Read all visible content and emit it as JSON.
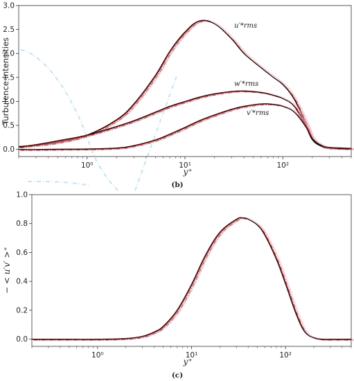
{
  "colors": {
    "dns": "#111111",
    "model_solid": "#8b1a1a",
    "model_dashdot": "#d23030",
    "faint_pink": "#f2b8c6",
    "faint_blue": "#a8d8f0"
  },
  "chart_data": [
    {
      "type": "line",
      "panel": "(b)",
      "xscale": "log",
      "xlim": [
        0.2,
        500
      ],
      "ylim": [
        -0.15,
        3.0
      ],
      "xlabel": "y⁺",
      "ylabel": "Turbulence Intensities",
      "xticks": [
        "10⁰",
        "10¹",
        "10²"
      ],
      "yticks": [
        "0.0",
        "0.5",
        "1.0",
        "1.5",
        "2.0",
        "2.5",
        "3.0"
      ],
      "legend": "none",
      "annotations": [
        {
          "text": "u′*rms",
          "series": "u_rms"
        },
        {
          "text": "w′*rms",
          "series": "w_rms"
        },
        {
          "text": "v′*rms",
          "series": "v_rms"
        }
      ],
      "x": [
        0.2,
        0.3,
        0.5,
        1,
        2,
        3,
        5,
        7,
        10,
        14,
        20,
        30,
        40,
        60,
        80,
        100,
        130,
        170,
        200,
        250,
        300,
        400,
        500
      ],
      "series": [
        {
          "key": "u_rms",
          "values": [
            0.06,
            0.09,
            0.15,
            0.3,
            0.62,
            0.95,
            1.55,
            2.05,
            2.45,
            2.68,
            2.62,
            2.3,
            2.0,
            1.7,
            1.5,
            1.35,
            1.05,
            0.55,
            0.2,
            0.06,
            0.03,
            0.02,
            0.02
          ]
        },
        {
          "key": "w_rms",
          "values": [
            0.05,
            0.1,
            0.18,
            0.3,
            0.48,
            0.6,
            0.78,
            0.9,
            1.0,
            1.09,
            1.16,
            1.21,
            1.22,
            1.19,
            1.13,
            1.06,
            0.9,
            0.5,
            0.2,
            0.07,
            0.04,
            0.03,
            0.02
          ]
        },
        {
          "key": "v_rms",
          "values": [
            0.0,
            0.0,
            0.005,
            0.01,
            0.03,
            0.08,
            0.2,
            0.32,
            0.46,
            0.6,
            0.72,
            0.84,
            0.9,
            0.95,
            0.94,
            0.9,
            0.78,
            0.48,
            0.22,
            0.08,
            0.04,
            0.02,
            0.02
          ]
        }
      ]
    },
    {
      "type": "line",
      "panel": "(c)",
      "xscale": "log",
      "xlim": [
        0.2,
        500
      ],
      "ylim": [
        -0.05,
        1.0
      ],
      "xlabel": "y⁺",
      "ylabel": "− < u′v′ >⁺",
      "xticks": [
        "10⁰",
        "10¹",
        "10²"
      ],
      "yticks": [
        "0.0",
        "0.2",
        "0.4",
        "0.6",
        "0.8",
        "1.0"
      ],
      "legend": "none",
      "x": [
        0.2,
        0.5,
        1,
        2,
        3,
        4,
        5,
        7,
        10,
        14,
        20,
        30,
        35,
        40,
        50,
        60,
        80,
        100,
        130,
        160,
        200,
        250,
        300,
        500
      ],
      "series": [
        {
          "key": "uv",
          "values": [
            0.0,
            0.0,
            0.0,
            0.005,
            0.02,
            0.05,
            0.09,
            0.2,
            0.38,
            0.58,
            0.74,
            0.83,
            0.84,
            0.83,
            0.79,
            0.72,
            0.55,
            0.38,
            0.17,
            0.05,
            0.01,
            0.0,
            0.0,
            0.0
          ]
        }
      ]
    }
  ]
}
